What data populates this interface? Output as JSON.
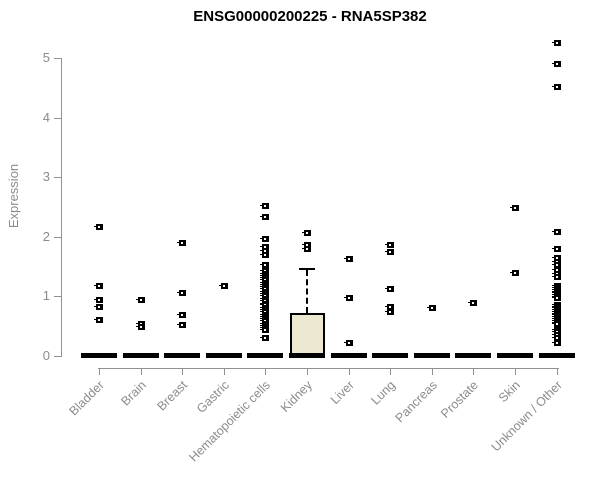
{
  "window": {
    "title": "ENSG00000200225 - RNA5SP382"
  },
  "colors": {
    "background": "#ffffff",
    "title_text": "#000000",
    "axis_line": "#919191",
    "axis_text": "#8c8c8c",
    "marker": "#000000",
    "box_fill": "#ece8cf",
    "box_border": "#000000"
  },
  "chart_data": {
    "type": "boxplot",
    "title": "ENSG00000200225 - RNA5SP382",
    "xlabel": "",
    "ylabel": "Expression",
    "ylim": [
      0,
      5.5
    ],
    "yticks": [
      0,
      1,
      2,
      3,
      4,
      5
    ],
    "grid": false,
    "legend": "none",
    "categories": [
      "Bladder",
      "Brain",
      "Breast",
      "Gastric",
      "Hematopoietic cells",
      "Kidney",
      "Liver",
      "Lung",
      "Pancreas",
      "Prostate",
      "Skin",
      "Unknown / Other"
    ],
    "series": [
      {
        "category": "Bladder",
        "median": 0,
        "points": [
          2.16,
          1.17,
          0.94,
          0.83,
          0.61
        ]
      },
      {
        "category": "Brain",
        "median": 0,
        "points": [
          0.94,
          0.54,
          0.49
        ]
      },
      {
        "category": "Breast",
        "median": 0,
        "points": [
          1.9,
          1.05,
          0.68,
          0.52
        ]
      },
      {
        "category": "Gastric",
        "median": 0,
        "points": [
          1.18
        ]
      },
      {
        "category": "Hematopoietic cells",
        "median": 0,
        "points": [
          2.52,
          2.33,
          1.97,
          1.83,
          1.77,
          1.69,
          1.53,
          1.42,
          1.38,
          1.35,
          1.31,
          1.27,
          1.23,
          1.19,
          1.15,
          1.12,
          1.08,
          1.04,
          1.0,
          0.96,
          0.92,
          0.88,
          0.85,
          0.81,
          0.77,
          0.73,
          0.69,
          0.65,
          0.62,
          0.58,
          0.54,
          0.5,
          0.47,
          0.44,
          0.31
        ]
      },
      {
        "category": "Kidney",
        "median": 0,
        "box": {
          "q1": 0.05,
          "q3": 0.72,
          "whisker_high": 1.47
        },
        "points": [
          2.06,
          1.86,
          1.79
        ]
      },
      {
        "category": "Liver",
        "median": 0,
        "points": [
          1.62,
          0.98,
          0.22
        ]
      },
      {
        "category": "Lung",
        "median": 0,
        "points": [
          1.86,
          1.75,
          1.13,
          0.83,
          0.74
        ]
      },
      {
        "category": "Pancreas",
        "median": 0,
        "points": [
          0.81
        ]
      },
      {
        "category": "Prostate",
        "median": 0,
        "points": [
          0.89
        ]
      },
      {
        "category": "Skin",
        "median": 0,
        "points": [
          2.48,
          1.4
        ]
      },
      {
        "category": "Unknown / Other",
        "median": 0,
        "points": [
          5.26,
          4.9,
          4.52,
          2.08,
          1.79,
          1.65,
          1.58,
          1.52,
          1.44,
          1.37,
          1.32,
          1.18,
          1.14,
          1.11,
          1.08,
          1.05,
          1.02,
          0.99,
          0.97,
          0.86,
          0.83,
          0.8,
          0.77,
          0.74,
          0.71,
          0.68,
          0.65,
          0.62,
          0.59,
          0.56,
          0.53,
          0.44,
          0.4,
          0.36,
          0.31,
          0.22
        ]
      }
    ]
  }
}
